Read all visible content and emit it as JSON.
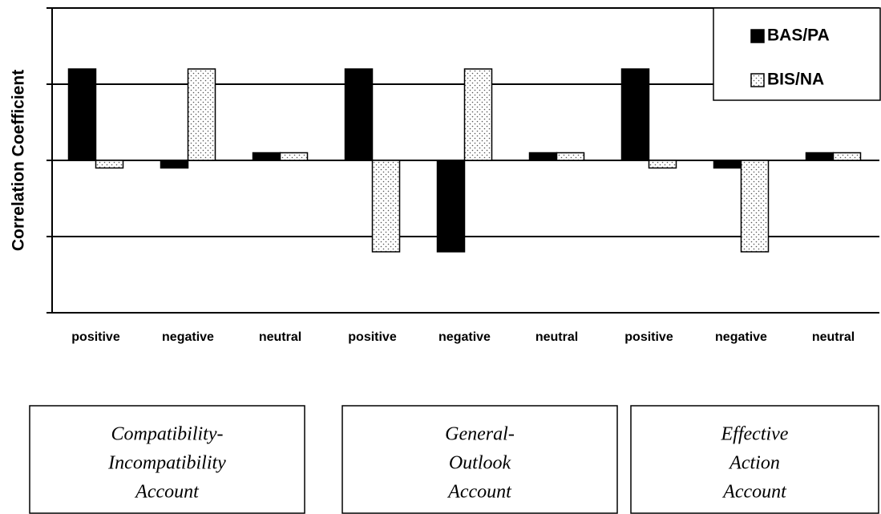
{
  "chart_data": {
    "type": "bar",
    "y_label": "Correlation Coefficient",
    "categories": [
      "positive",
      "negative",
      "neutral",
      "positive",
      "negative",
      "neutral",
      "positive",
      "negative",
      "neutral"
    ],
    "series": [
      {
        "name": "BAS/PA",
        "color": "#000000",
        "values": [
          1.2,
          -0.1,
          0.1,
          1.2,
          -1.2,
          0.1,
          1.2,
          -0.1,
          0.1
        ]
      },
      {
        "name": "BIS/NA",
        "color": "#ffffff",
        "pattern": "dotted",
        "values": [
          -0.1,
          1.2,
          0.1,
          -1.2,
          1.2,
          0.1,
          -0.1,
          -1.2,
          0.1
        ]
      }
    ],
    "groups": [
      {
        "lines": [
          "Compatibility-",
          "Incompatibility",
          "Account"
        ]
      },
      {
        "lines": [
          "General-",
          "Outlook",
          "Account"
        ]
      },
      {
        "lines": [
          "Effective",
          "Action",
          "Account"
        ]
      }
    ],
    "ylim": [
      -2,
      2
    ],
    "yticks": [
      -2,
      -1,
      0,
      1,
      2
    ],
    "grid": true,
    "legend": "upper right"
  }
}
